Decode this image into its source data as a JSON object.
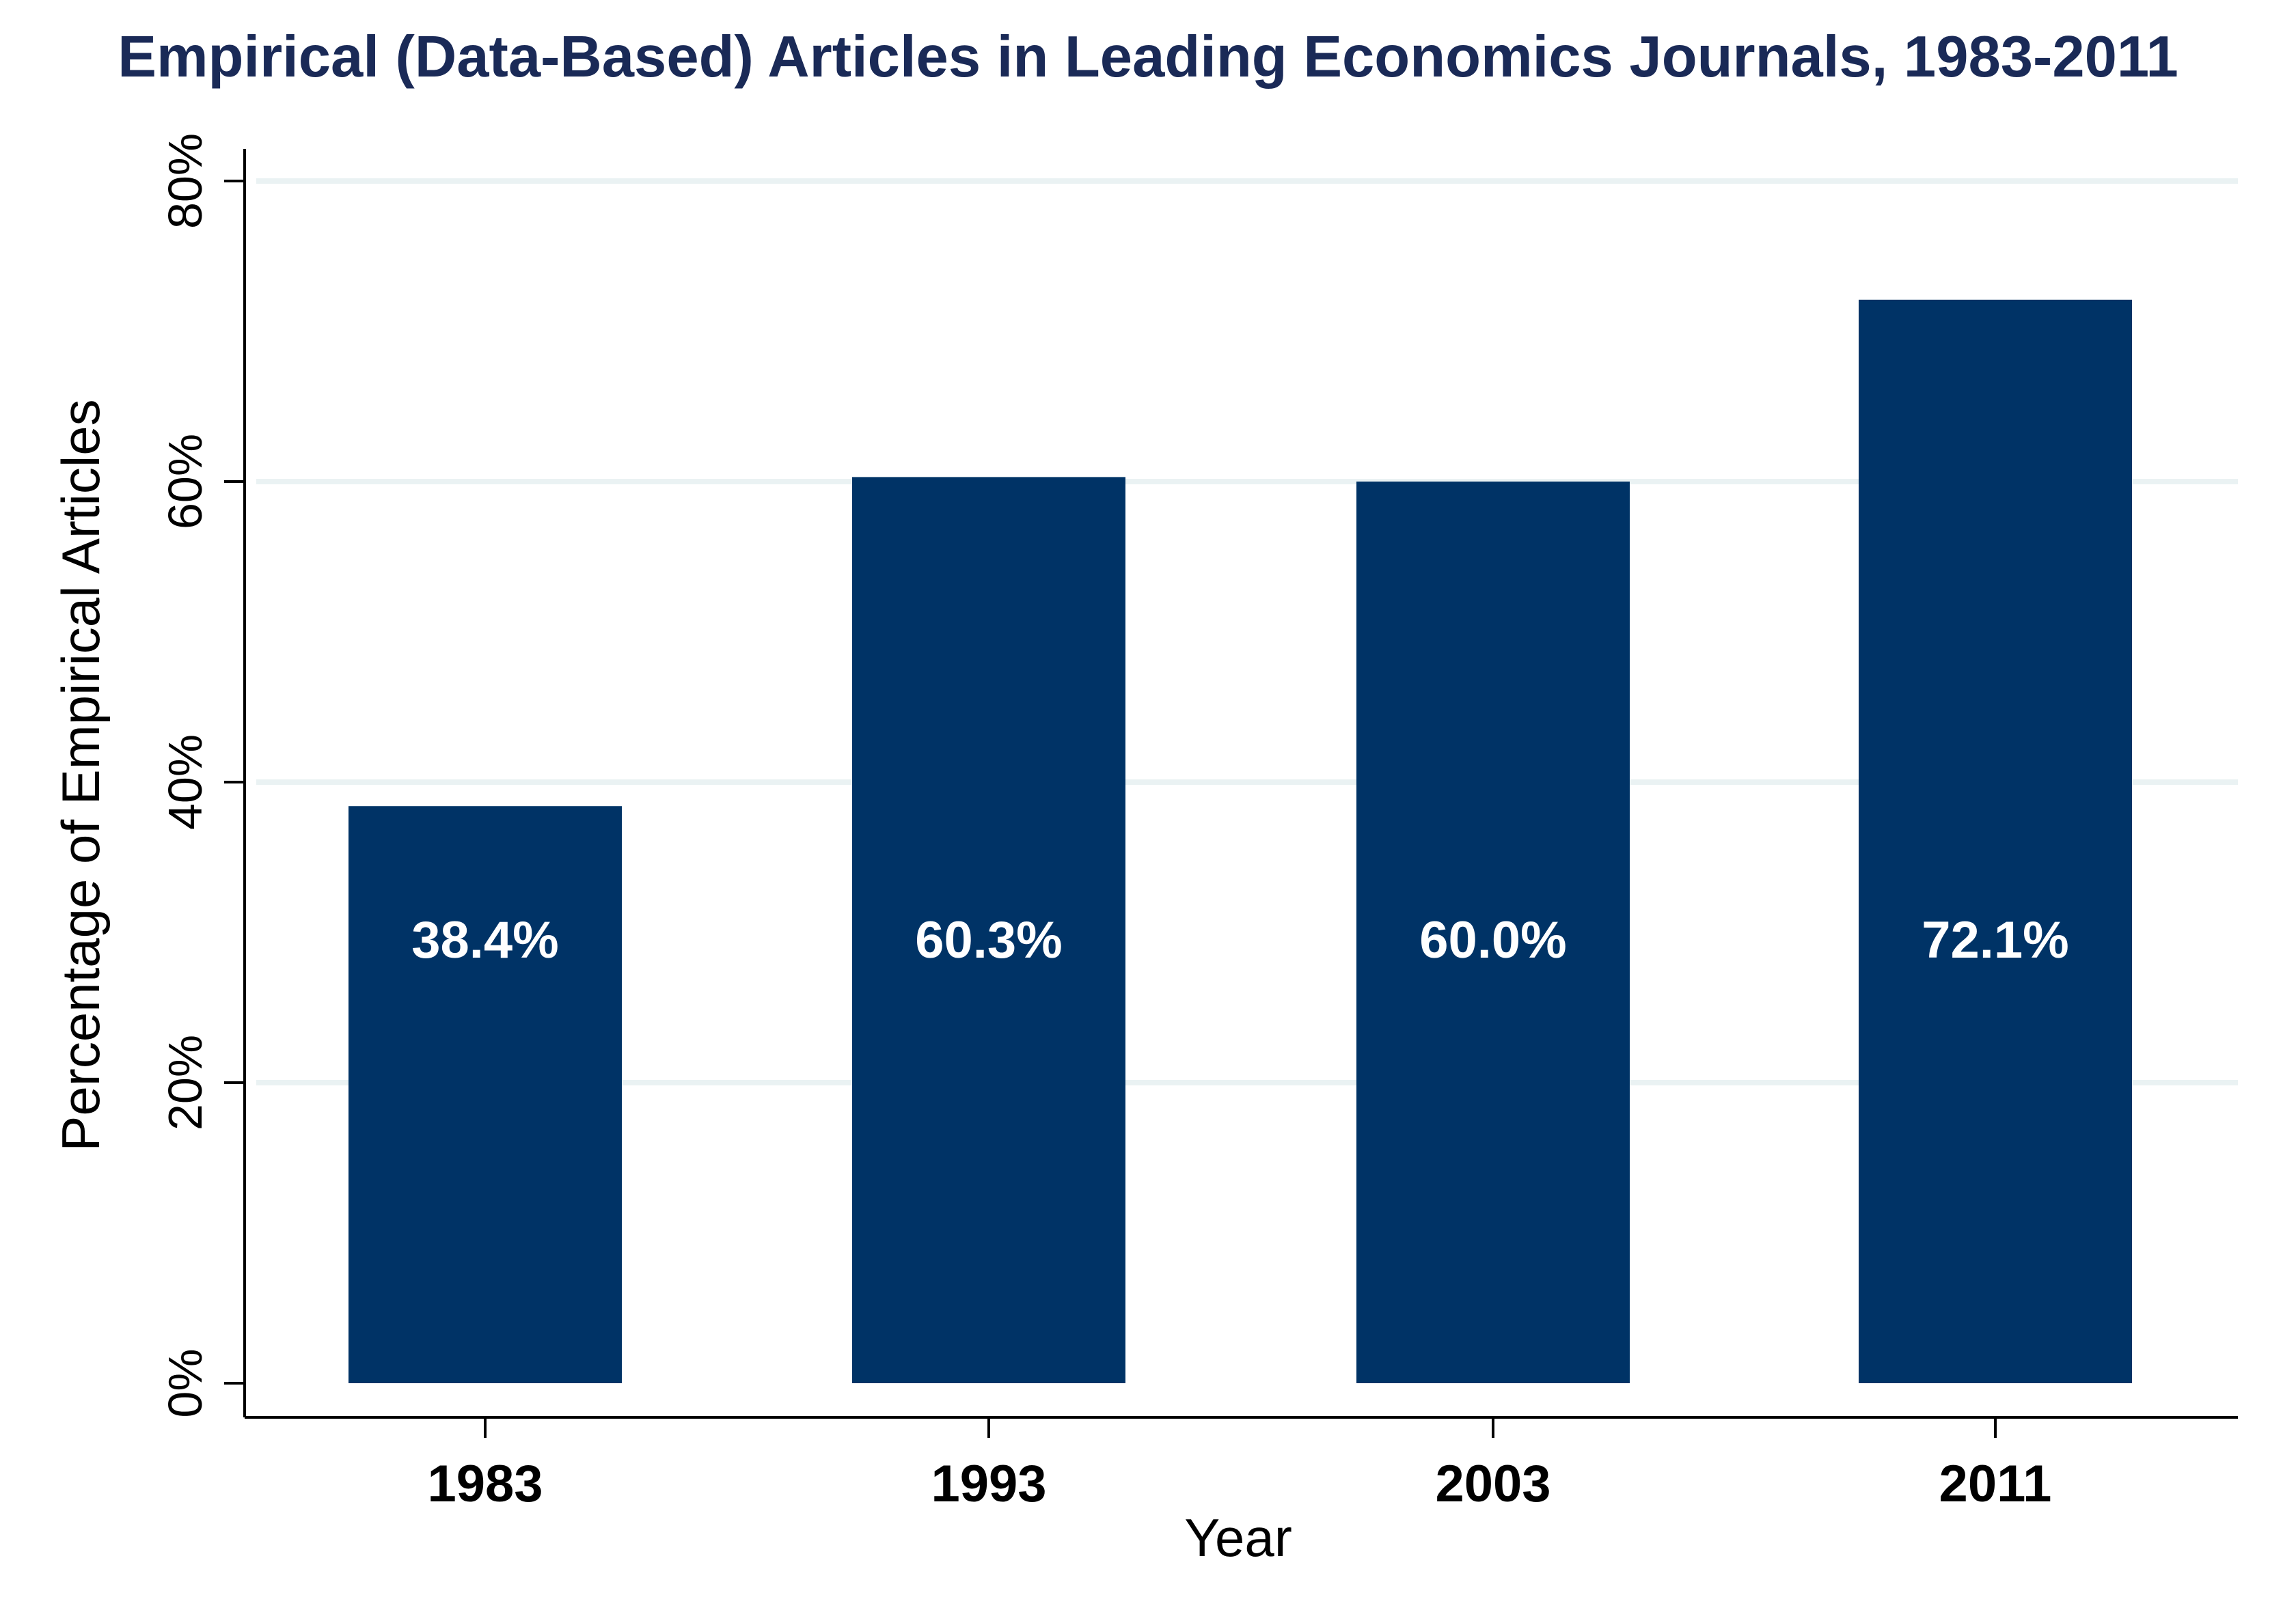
{
  "chart_data": {
    "type": "bar",
    "title": "Empirical (Data-Based) Articles in Leading Economics Journals, 1983-2011",
    "xlabel": "Year",
    "ylabel": "Percentage of Empirical Articles",
    "categories": [
      "1983",
      "1993",
      "2003",
      "2011"
    ],
    "values": [
      38.4,
      60.3,
      60.0,
      72.1
    ],
    "data_labels": [
      "38.4%",
      "60.3%",
      "60.0%",
      "72.1%"
    ],
    "ylim": [
      0,
      80
    ],
    "yticks": [
      0,
      20,
      40,
      60,
      80
    ],
    "ytick_labels": [
      "0%",
      "20%",
      "40%",
      "60%",
      "80%"
    ],
    "grid": true,
    "bar_color": "#003366",
    "grid_color": "#eaf2f3",
    "title_color": "#1a2a57"
  }
}
